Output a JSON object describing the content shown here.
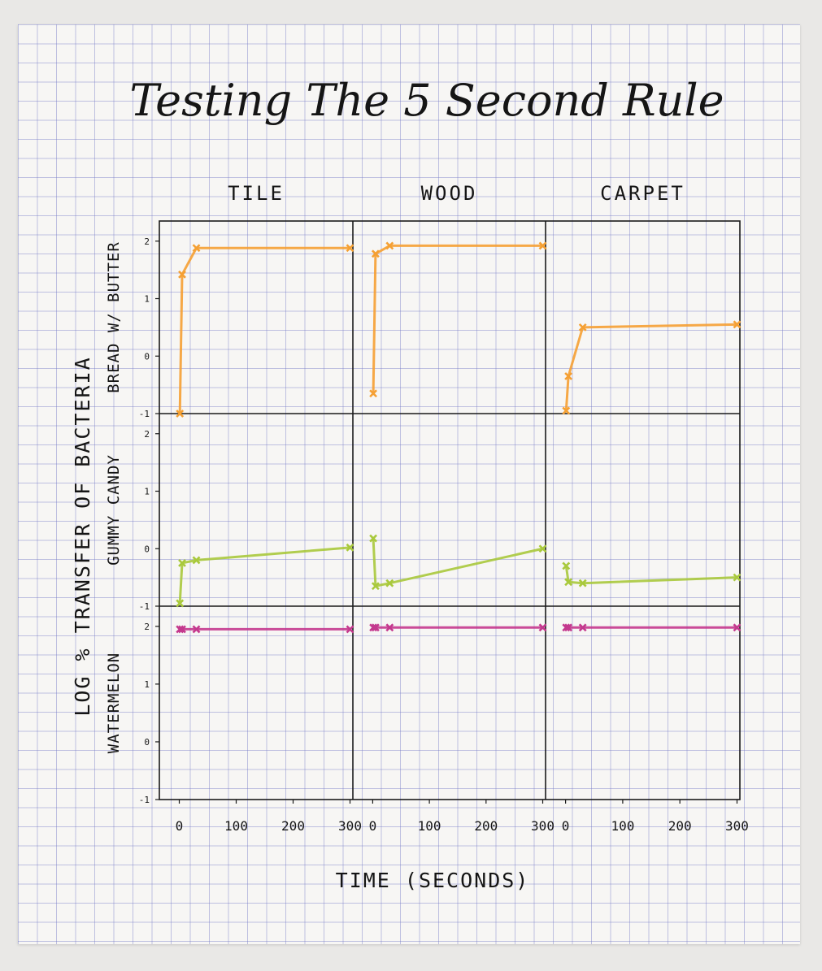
{
  "chart_data": {
    "type": "line",
    "title": "Testing The 5 Second Rule",
    "xlabel": "TIME (SECONDS)",
    "ylabel": "LOG % TRANSFER OF BACTERIA",
    "columns": [
      "TILE",
      "WOOD",
      "CARPET"
    ],
    "rows": [
      "BREAD W/ BUTTER",
      "GUMMY CANDY",
      "WATERMELON"
    ],
    "x_ticks": [
      0,
      100,
      200,
      300
    ],
    "y_ticks": [
      -1,
      0,
      1,
      2
    ],
    "xlim": [
      -35,
      305
    ],
    "ylim": [
      -1,
      2.35
    ],
    "grid": false,
    "row_colors": [
      "#f5a033",
      "#a9c93c",
      "#c4398e"
    ],
    "panels": [
      {
        "row": "BREAD W/ BUTTER",
        "column": "TILE",
        "x": [
          1,
          5,
          30,
          300
        ],
        "y": [
          -1.0,
          1.42,
          1.88,
          1.88
        ]
      },
      {
        "row": "BREAD W/ BUTTER",
        "column": "WOOD",
        "x": [
          1,
          5,
          30,
          300
        ],
        "y": [
          -0.65,
          1.78,
          1.92,
          1.92
        ]
      },
      {
        "row": "BREAD W/ BUTTER",
        "column": "CARPET",
        "x": [
          1,
          5,
          30,
          300
        ],
        "y": [
          -0.95,
          -0.35,
          0.5,
          0.55
        ]
      },
      {
        "row": "GUMMY CANDY",
        "column": "TILE",
        "x": [
          1,
          5,
          30,
          300
        ],
        "y": [
          -0.95,
          -0.25,
          -0.2,
          0.02
        ]
      },
      {
        "row": "GUMMY CANDY",
        "column": "WOOD",
        "x": [
          1,
          5,
          30,
          300
        ],
        "y": [
          0.18,
          -0.65,
          -0.6,
          0.0
        ]
      },
      {
        "row": "GUMMY CANDY",
        "column": "CARPET",
        "x": [
          1,
          5,
          30,
          300
        ],
        "y": [
          -0.3,
          -0.58,
          -0.6,
          -0.5
        ]
      },
      {
        "row": "WATERMELON",
        "column": "TILE",
        "x": [
          1,
          5,
          30,
          300
        ],
        "y": [
          1.95,
          1.95,
          1.95,
          1.95
        ]
      },
      {
        "row": "WATERMELON",
        "column": "WOOD",
        "x": [
          1,
          5,
          30,
          300
        ],
        "y": [
          1.98,
          1.98,
          1.98,
          1.98
        ]
      },
      {
        "row": "WATERMELON",
        "column": "CARPET",
        "x": [
          1,
          5,
          30,
          300
        ],
        "y": [
          1.98,
          1.98,
          1.98,
          1.98
        ]
      }
    ]
  }
}
